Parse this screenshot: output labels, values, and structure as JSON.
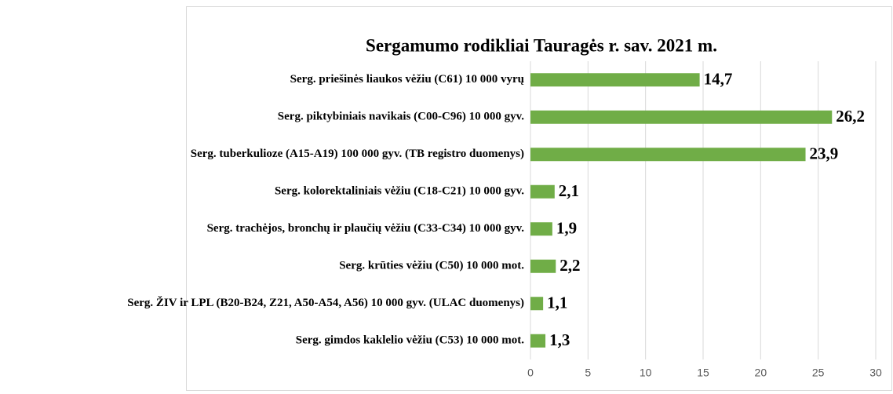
{
  "chart_data": {
    "type": "barh",
    "title": "Sergamumo rodikliai Tauragės r. sav. 2021 m.",
    "categories": [
      "Serg. priešinės liaukos vėžiu (C61) 10 000 vyrų",
      "Serg. piktybiniais navikais (C00-C96) 10 000 gyv.",
      "Serg. tuberkulioze (A15-A19) 100 000 gyv. (TB registro duomenys)",
      "Serg. kolorektaliniais vėžiu (C18-C21) 10 000 gyv.",
      "Serg. trachėjos, bronchų ir plaučių vėžiu (C33-C34) 10 000 gyv.",
      "Serg. krūties vėžiu (C50) 10 000 mot.",
      "Serg. ŽIV ir LPL (B20-B24, Z21, A50-A54, A56) 10 000 gyv. (ULAC duomenys)",
      "Serg. gimdos kaklelio vėžiu (C53) 10 000 mot."
    ],
    "values": [
      14.7,
      26.2,
      23.9,
      2.1,
      1.9,
      2.2,
      1.1,
      1.3
    ],
    "value_labels": [
      "14,7",
      "26,2",
      "23,9",
      "2,1",
      "1,9",
      "2,2",
      "1,1",
      "1,3"
    ],
    "color": "#70ad47",
    "xlim": [
      0,
      30
    ],
    "xticks": [
      0,
      5,
      10,
      15,
      20,
      25,
      30
    ],
    "grid": true
  }
}
